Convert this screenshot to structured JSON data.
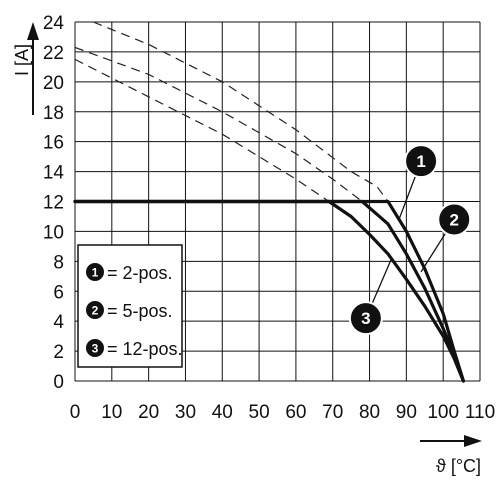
{
  "chart_data": {
    "type": "line",
    "xlabel": "ϑ [°C]",
    "ylabel": "I [A]",
    "xlim": [
      0,
      110
    ],
    "ylim": [
      0,
      24
    ],
    "xticks": [
      "0",
      "10",
      "20",
      "30",
      "40",
      "50",
      "60",
      "70",
      "80",
      "90",
      "100",
      "110"
    ],
    "yticks": [
      "0",
      "2",
      "4",
      "6",
      "8",
      "10",
      "12",
      "14",
      "16",
      "18",
      "20",
      "22",
      "24"
    ],
    "grid": true,
    "legend_placement": "left",
    "legend": [
      {
        "id": "1",
        "label": "= 2-pos."
      },
      {
        "id": "2",
        "label": "= 5-pos."
      },
      {
        "id": "3",
        "label": "= 12-pos."
      }
    ],
    "series": [
      {
        "id": "1",
        "style": "solid",
        "x": [
          0,
          85,
          90,
          95,
          100,
          103,
          105.5
        ],
        "y": [
          12,
          12,
          10,
          7.5,
          4.5,
          2,
          0
        ]
      },
      {
        "id": "2",
        "style": "solid",
        "x": [
          0,
          78,
          85,
          90,
          95,
          100,
          103,
          105.5
        ],
        "y": [
          12,
          12,
          10.5,
          8.5,
          6.2,
          3.5,
          1.8,
          0
        ]
      },
      {
        "id": "3",
        "style": "solid",
        "x": [
          0,
          69,
          75,
          80,
          85,
          90,
          95,
          100,
          103,
          105.5
        ],
        "y": [
          12,
          12,
          11,
          9.8,
          8.5,
          6.8,
          5,
          3,
          1.5,
          0
        ]
      },
      {
        "id": "1-extension",
        "style": "dashed",
        "x": [
          5,
          20,
          40,
          60,
          75,
          82,
          85
        ],
        "y": [
          24,
          22.5,
          20,
          16.8,
          14,
          13,
          12
        ]
      },
      {
        "id": "2-extension",
        "style": "dashed",
        "x": [
          0,
          20,
          40,
          60,
          70,
          78
        ],
        "y": [
          22.3,
          20.5,
          18,
          15.2,
          13.5,
          12
        ]
      },
      {
        "id": "3-extension",
        "style": "dashed",
        "x": [
          0,
          20,
          40,
          60,
          69
        ],
        "y": [
          21.5,
          19,
          16.5,
          13.5,
          12
        ]
      }
    ],
    "callouts": [
      {
        "id": "1",
        "x": 94,
        "y": 14.7,
        "target_x": 88,
        "target_y": 10.8
      },
      {
        "id": "2",
        "x": 103,
        "y": 10.8,
        "target_x": 94,
        "target_y": 7.3
      },
      {
        "id": "3",
        "x": 79,
        "y": 4.2,
        "target_x": 86,
        "target_y": 8.2
      }
    ]
  }
}
